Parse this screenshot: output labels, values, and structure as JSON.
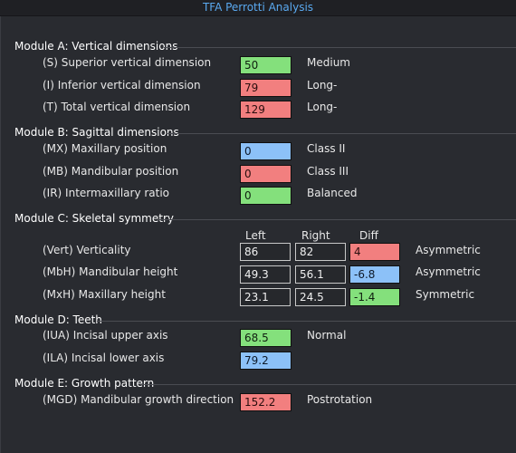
{
  "window": {
    "title": "TFA Perrotti Analysis"
  },
  "colors": {
    "green": "#84e07c",
    "red": "#f27f7f",
    "blue": "#8cc1f8",
    "title": "#5aa9f0"
  },
  "moduleA": {
    "title": "Module A: Vertical dimensions",
    "rows": [
      {
        "label": "(S) Superior vertical dimension",
        "value": "50",
        "status": "Medium"
      },
      {
        "label": "(I) Inferior vertical dimension",
        "value": "79",
        "status": "Long-"
      },
      {
        "label": "(T) Total vertical dimension",
        "value": "129",
        "status": "Long-"
      }
    ]
  },
  "moduleB": {
    "title": "Module B: Sagittal dimensions",
    "rows": [
      {
        "label": "(MX) Maxillary position",
        "value": "0",
        "status": "Class II"
      },
      {
        "label": "(MB) Mandibular position",
        "value": "0",
        "status": "Class III"
      },
      {
        "label": "(IR) Intermaxillary ratio",
        "value": "0",
        "status": "Balanced"
      }
    ]
  },
  "moduleC": {
    "title": "Module C: Skeletal symmetry",
    "headers": {
      "left": "Left",
      "right": "Right",
      "diff": "Diff"
    },
    "rows": [
      {
        "label": "(Vert) Verticality",
        "left": "86",
        "right": "82",
        "diff": "4",
        "status": "Asymmetric"
      },
      {
        "label": "(MbH) Mandibular height",
        "left": "49.3",
        "right": "56.1",
        "diff": "-6.8",
        "status": "Asymmetric"
      },
      {
        "label": "(MxH) Maxillary height",
        "left": "23.1",
        "right": "24.5",
        "diff": "-1.4",
        "status": "Symmetric"
      }
    ]
  },
  "moduleD": {
    "title": "Module D: Teeth",
    "rows": [
      {
        "label": "(IUA) Incisal upper axis",
        "value": "68.5",
        "status": "Normal"
      },
      {
        "label": "(ILA) Incisal lower axis",
        "value": "79.2",
        "status": ""
      }
    ]
  },
  "moduleE": {
    "title": "Module E: Growth pattern",
    "rows": [
      {
        "label": "(MGD) Mandibular growth direction",
        "value": "152.2",
        "status": "Postrotation"
      }
    ]
  }
}
